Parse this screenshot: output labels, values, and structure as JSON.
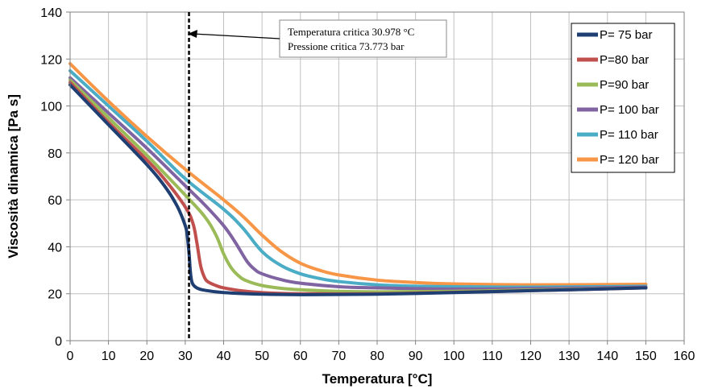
{
  "chart_data": {
    "type": "line",
    "title": "",
    "xlabel": "Temperatura [°C]",
    "ylabel": "Viscosità dinamica [Pa s]",
    "xlim": [
      0,
      160
    ],
    "ylim": [
      0,
      140
    ],
    "x_ticks": [
      0,
      10,
      20,
      30,
      40,
      50,
      60,
      70,
      80,
      90,
      100,
      110,
      120,
      130,
      140,
      150,
      160
    ],
    "y_ticks": [
      0,
      20,
      40,
      60,
      80,
      100,
      120,
      140
    ],
    "grid": true,
    "legend_position": "top-right",
    "critical_line": {
      "x": 30.978,
      "style": "dashed"
    },
    "annotation": {
      "line1": "Temperatura critica 30.978 °C",
      "line2": "Pressione critica 73.773 bar"
    },
    "series": [
      {
        "name": "P= 75 bar",
        "color": "#1F3F73",
        "x": [
          0,
          10,
          20,
          25,
          28,
          30,
          30.5,
          31,
          31.3,
          31.6,
          32,
          33,
          35,
          40,
          50,
          60,
          80,
          100,
          120,
          150
        ],
        "y": [
          109,
          92,
          75,
          65,
          57,
          49,
          45,
          37,
          30,
          26,
          24,
          22.5,
          21.5,
          20.5,
          19.8,
          19.6,
          19.8,
          20.5,
          21.3,
          22.5
        ]
      },
      {
        "name": "P=80 bar",
        "color": "#C0504D",
        "x": [
          0,
          10,
          20,
          25,
          30,
          32,
          33,
          34,
          35,
          36,
          38,
          40,
          45,
          50,
          60,
          80,
          100,
          120,
          150
        ],
        "y": [
          110,
          93,
          77,
          68,
          57,
          50,
          42,
          32,
          27,
          25,
          23.5,
          22.5,
          21.2,
          20.5,
          20,
          20,
          20.6,
          21.3,
          22.5
        ]
      },
      {
        "name": "P=90 bar",
        "color": "#9BBB59",
        "x": [
          0,
          10,
          20,
          30,
          35,
          38,
          40,
          42,
          44,
          46,
          50,
          55,
          60,
          70,
          80,
          100,
          120,
          150
        ],
        "y": [
          111,
          95,
          79,
          62,
          53,
          45,
          37,
          31,
          27.5,
          25.5,
          23.5,
          22.3,
          21.7,
          21,
          20.8,
          21,
          21.6,
          22.5
        ]
      },
      {
        "name": "P= 100 bar",
        "color": "#8064A2",
        "x": [
          0,
          10,
          20,
          30,
          35,
          40,
          43,
          46,
          48,
          50,
          55,
          60,
          70,
          80,
          100,
          120,
          150
        ],
        "y": [
          112,
          97,
          82,
          66,
          58,
          49,
          42,
          34,
          30.5,
          28.5,
          26,
          24.5,
          23,
          22.5,
          22,
          22.2,
          22.8
        ]
      },
      {
        "name": "P= 110 bar",
        "color": "#4BACC6",
        "x": [
          0,
          10,
          20,
          30,
          40,
          45,
          50,
          55,
          60,
          65,
          70,
          80,
          90,
          100,
          120,
          150
        ],
        "y": [
          115,
          100,
          85,
          69,
          56,
          48,
          38,
          32,
          28.5,
          26.5,
          25.2,
          23.8,
          23.2,
          23,
          22.8,
          23.2
        ]
      },
      {
        "name": "P= 120 bar",
        "color": "#F79646",
        "x": [
          0,
          10,
          20,
          30,
          40,
          45,
          50,
          55,
          60,
          65,
          70,
          80,
          90,
          100,
          120,
          150
        ],
        "y": [
          118,
          102,
          87,
          73,
          60,
          53,
          45,
          38,
          33,
          30,
          28,
          25.8,
          24.8,
          24.2,
          23.8,
          24
        ]
      }
    ]
  }
}
